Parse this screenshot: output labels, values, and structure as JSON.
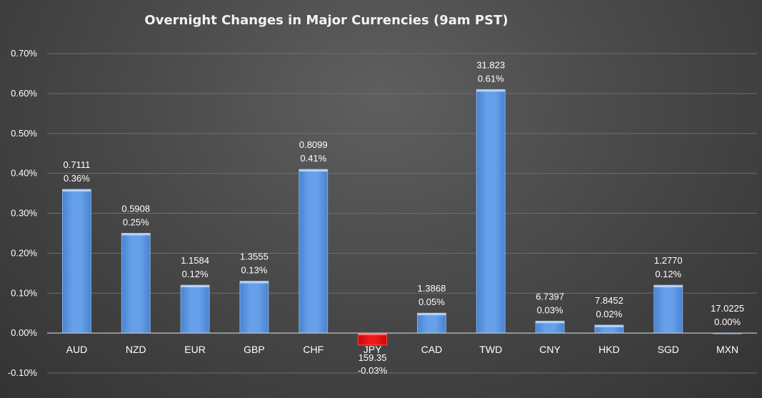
{
  "chart_data": {
    "type": "bar",
    "title": "Overnight Changes in Major Currencies (9am PST)",
    "categories": [
      "AUD",
      "NZD",
      "EUR",
      "GBP",
      "CHF",
      "JPY",
      "CAD",
      "TWD",
      "CNY",
      "HKD",
      "SGD",
      "MXN"
    ],
    "values": [
      0.36,
      0.25,
      0.12,
      0.13,
      0.41,
      -0.03,
      0.05,
      0.61,
      0.03,
      0.02,
      0.12,
      0.0
    ],
    "value_labels": [
      "0.36%",
      "0.25%",
      "0.12%",
      "0.13%",
      "0.41%",
      "-0.03%",
      "0.05%",
      "0.61%",
      "0.03%",
      "0.02%",
      "0.12%",
      "0.00%"
    ],
    "rates": [
      "0.7111",
      "0.5908",
      "1.1584",
      "1.3555",
      "0.8099",
      "159.35",
      "1.3868",
      "31.823",
      "6.7397",
      "7.8452",
      "1.2770",
      "17.0225"
    ],
    "xlabel": "",
    "ylabel": "",
    "ylim": [
      -0.1,
      0.7
    ],
    "yticks": [
      -0.1,
      0.0,
      0.1,
      0.2,
      0.3,
      0.4,
      0.5,
      0.6,
      0.7
    ],
    "ytick_labels": [
      "-0.10%",
      "0.00%",
      "0.10%",
      "0.20%",
      "0.30%",
      "0.40%",
      "0.50%",
      "0.60%",
      "0.70%"
    ],
    "grid": true,
    "legend": "none",
    "colors": {
      "positive": "#5b94de",
      "negative": "#e01010",
      "grid": "#6e6e6e",
      "text": "#ffffff"
    }
  }
}
